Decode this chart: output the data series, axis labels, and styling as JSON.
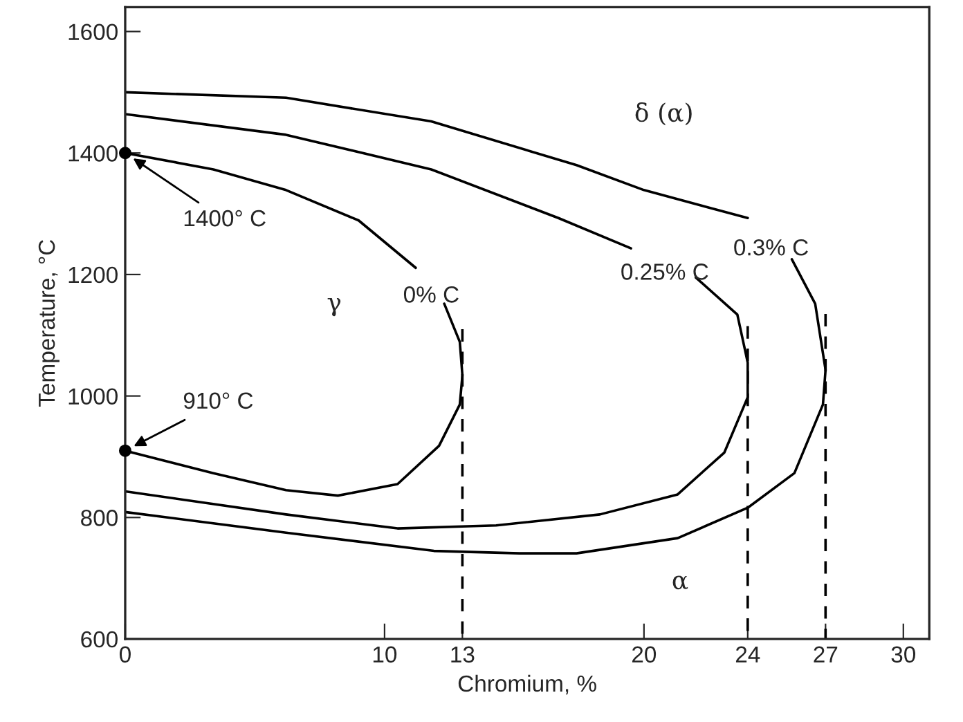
{
  "chart_data": {
    "type": "line",
    "xlabel": "Chromium, %",
    "ylabel": "Temperature, °C",
    "xlim": [
      0,
      31
    ],
    "ylim": [
      600,
      1640
    ],
    "xticks": [
      0,
      10,
      13,
      20,
      24,
      27,
      30
    ],
    "yticks": [
      600,
      800,
      1000,
      1200,
      1400,
      1600
    ],
    "grid": false,
    "legend": false,
    "line_style": "solid",
    "marker": "none",
    "series": [
      {
        "name": "0% C",
        "color": "#000000",
        "x": [
          0,
          3.4,
          6.2,
          9,
          11.2,
          11.8,
          12.3,
          12.9,
          13,
          12.9,
          12.1,
          10.5,
          8.2,
          6.2,
          3.4,
          0
        ],
        "values": [
          1400,
          1373,
          1339,
          1289,
          1211,
          null,
          1152,
          1089,
          1034,
          986,
          918,
          855,
          836,
          845,
          873,
          910
        ]
      },
      {
        "name": "0.25% C",
        "color": "#000000",
        "x": [
          0,
          6.2,
          11.8,
          16.7,
          19.5,
          20.8,
          22,
          23.6,
          24,
          24,
          23.1,
          21.3,
          18.3,
          14.3,
          10.5,
          6.2,
          0
        ],
        "values": [
          1464,
          1430,
          1373,
          1293,
          1243,
          null,
          1195,
          1134,
          1055,
          998,
          907,
          838,
          805,
          787,
          782,
          805,
          843
        ]
      },
      {
        "name": "0.3% C",
        "color": "#000000",
        "x": [
          0,
          6.2,
          11.8,
          17.4,
          20,
          24,
          24.9,
          25.7,
          26.6,
          27,
          26.9,
          25.8,
          24,
          21.3,
          17.4,
          15.2,
          11.9,
          6.2,
          0
        ],
        "values": [
          1500,
          1491,
          1452,
          1380,
          1339,
          1293,
          null,
          1225,
          1152,
          1043,
          986,
          873,
          816,
          766,
          741,
          741,
          745,
          775,
          809
        ]
      },
      {
        "color": "#000000",
        "line_style": "dashed",
        "x": [
          13,
          13
        ],
        "values": [
          600,
          1110
        ]
      },
      {
        "color": "#000000",
        "line_style": "dashed",
        "x": [
          24,
          24
        ],
        "values": [
          600,
          1115
        ]
      },
      {
        "color": "#000000",
        "line_style": "dashed",
        "x": [
          27,
          27
        ],
        "values": [
          600,
          1135
        ]
      },
      {
        "type": "scatter",
        "color": "#000000",
        "marker": "circle",
        "x": [
          0,
          0
        ],
        "values": [
          1400,
          910
        ]
      }
    ],
    "annotations": [
      {
        "text": "1400° C",
        "x": 0,
        "y": 1400
      },
      {
        "text": "910° C",
        "x": 0,
        "y": 910
      },
      "δ (α)",
      "γ",
      "α"
    ]
  }
}
